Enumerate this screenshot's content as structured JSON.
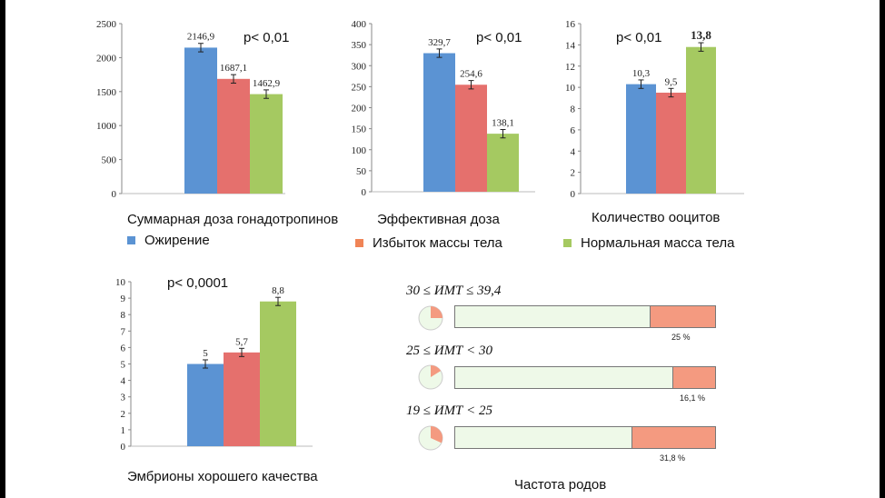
{
  "colors": {
    "obesity": "#5b93d3",
    "overweight": "#e5706d",
    "normal": "#a5c961",
    "births_rest": "#eef9e8",
    "births_fill": "#f49a80"
  },
  "legend": {
    "obesity": "Ожирение",
    "overweight": "Избыток массы тела",
    "normal": "Нормальная масса тела"
  },
  "chart_data": [
    {
      "type": "bar",
      "title": "Суммарная доза гонадотропинов",
      "annotation": "p< 0,01",
      "categories": [
        "Ожирение",
        "Избыток массы тела",
        "Нормальная масса тела"
      ],
      "values": [
        2146.9,
        1687.1,
        1462.9
      ],
      "labels": [
        "2146,9",
        "1687,1",
        "1462,9"
      ],
      "ylim": [
        0,
        2500
      ],
      "yticks": [
        "0",
        "500",
        "1000",
        "1500",
        "2000",
        "2500"
      ]
    },
    {
      "type": "bar",
      "title": "Эффективная доза",
      "annotation": "p< 0,01",
      "categories": [
        "Ожирение",
        "Избыток массы тела",
        "Нормальная масса тела"
      ],
      "values": [
        329.7,
        254.6,
        138.1
      ],
      "labels": [
        "329,7",
        "254,6",
        "138,1"
      ],
      "ylim": [
        0,
        400
      ],
      "yticks": [
        "0",
        "50",
        "100",
        "150",
        "200",
        "250",
        "300",
        "350",
        "400"
      ]
    },
    {
      "type": "bar",
      "title": "Количество  ооцитов",
      "annotation": "p< 0,01",
      "categories": [
        "Ожирение",
        "Избыток массы тела",
        "Нормальная масса тела"
      ],
      "values": [
        10.3,
        9.5,
        13.8
      ],
      "labels": [
        "10,3",
        "9,5",
        "13,8"
      ],
      "ylim": [
        0,
        16
      ],
      "yticks": [
        "0",
        "2",
        "4",
        "6",
        "8",
        "10",
        "12",
        "14",
        "16"
      ]
    },
    {
      "type": "bar",
      "title": "Эмбрионы хорошего качества",
      "annotation": "p< 0,0001",
      "categories": [
        "Ожирение",
        "Избыток массы тела",
        "Нормальная масса тела"
      ],
      "values": [
        5,
        5.7,
        8.8
      ],
      "labels": [
        "5",
        "5,7",
        "8,8"
      ],
      "ylim": [
        0,
        10
      ],
      "yticks": [
        "0",
        "1",
        "2",
        "3",
        "4",
        "5",
        "6",
        "7",
        "8",
        "9",
        "10"
      ]
    },
    {
      "type": "bar",
      "title": "Частота родов",
      "orientation": "horizontal-stacked",
      "categories": [
        "30 ≤ ИМТ ≤ 39,4",
        "25 ≤ ИМТ < 30",
        "19 ≤ ИМТ < 25"
      ],
      "values": [
        25,
        16.1,
        31.8
      ],
      "labels": [
        "25 %",
        "16,1 %",
        "31,8 %"
      ],
      "xlim": [
        0,
        100
      ]
    }
  ]
}
